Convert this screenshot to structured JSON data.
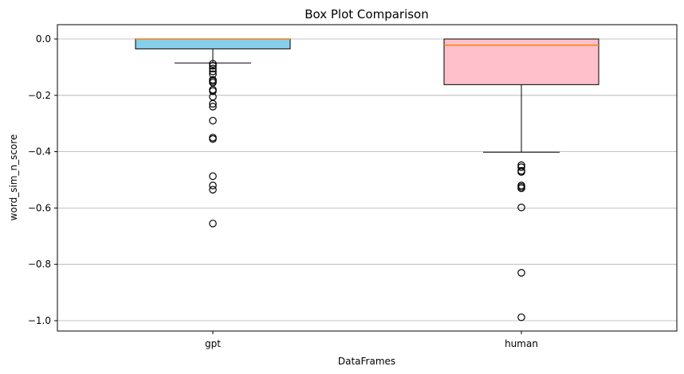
{
  "chart_data": {
    "type": "box",
    "title": "Box Plot Comparison",
    "xlabel": "DataFrames",
    "ylabel": "word_sim_n_score",
    "ylim": [
      -1.04,
      0.05
    ],
    "yticks": [
      0.0,
      -0.2,
      -0.4,
      -0.6,
      -0.8,
      -1.0
    ],
    "ytick_labels": [
      "0.0",
      "−0.2",
      "−0.4",
      "−0.6",
      "−0.8",
      "−1.0"
    ],
    "grid": "y",
    "categories": [
      "gpt",
      "human"
    ],
    "boxes": [
      {
        "name": "gpt",
        "q1": -0.035,
        "median": 0.0,
        "q3": 0.0,
        "whisker_low": -0.085,
        "whisker_high": 0.0,
        "color": "#87ceeb",
        "outliers": [
          -0.088,
          -0.095,
          -0.105,
          -0.115,
          -0.125,
          -0.145,
          -0.15,
          -0.155,
          -0.18,
          -0.185,
          -0.205,
          -0.23,
          -0.24,
          -0.29,
          -0.35,
          -0.355,
          -0.487,
          -0.52,
          -0.535,
          -0.655
        ]
      },
      {
        "name": "human",
        "q1": -0.162,
        "median": -0.022,
        "q3": 0.0,
        "whisker_low": -0.402,
        "whisker_high": 0.0,
        "color": "#ffc0cb",
        "outliers": [
          -0.448,
          -0.455,
          -0.468,
          -0.472,
          -0.52,
          -0.525,
          -0.53,
          -0.598,
          -0.83,
          -0.988
        ]
      }
    ],
    "median_color": "#ff7f0e",
    "grid_color": "#b0b0b0"
  }
}
